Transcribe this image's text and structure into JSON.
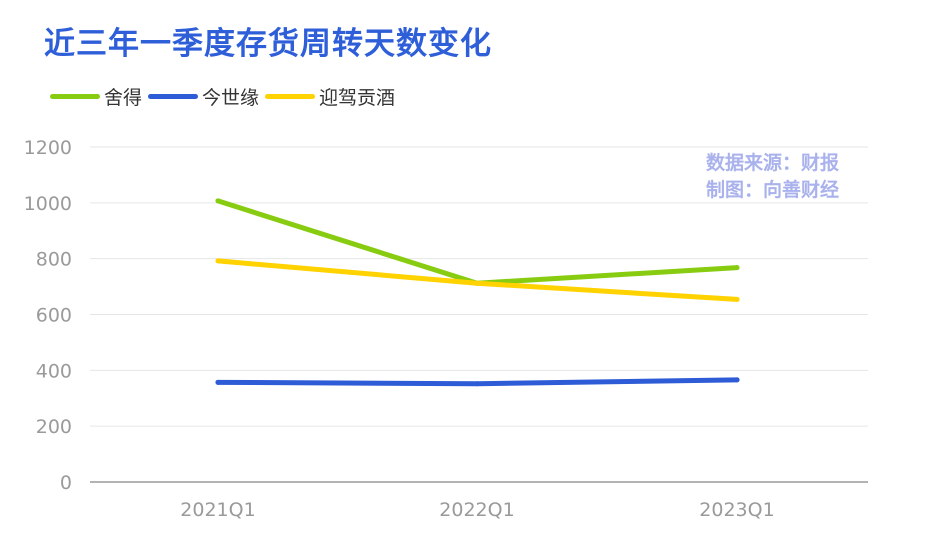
{
  "header": {
    "title": "近三年一季度存货周转天数变化"
  },
  "source_note": {
    "line1": "数据来源：财报",
    "line2": "制图：向善财经"
  },
  "colors": {
    "title": "#2e5fd9",
    "grid": "#e6e6e6",
    "axis": "#9a9a9a",
    "tick_text": "#9a9a9a",
    "source_note": "#a9b2ec"
  },
  "chart_data": {
    "type": "line",
    "title": "近三年一季度存货周转天数变化",
    "xlabel": "",
    "ylabel": "",
    "categories": [
      "2021Q1",
      "2022Q1",
      "2023Q1"
    ],
    "yticks": [
      "0",
      "200",
      "400",
      "600",
      "800",
      "1000",
      "1200"
    ],
    "ylim": [
      0,
      1200
    ],
    "grid": true,
    "legend_position": "top-left",
    "series": [
      {
        "name": "舍得",
        "color": "#88cc11",
        "values": [
          1007,
          712,
          768
        ]
      },
      {
        "name": "今世缘",
        "color": "#2e5bd6",
        "values": [
          357,
          352,
          366
        ]
      },
      {
        "name": "迎驾贡酒",
        "color": "#ffd200",
        "values": [
          792,
          712,
          654
        ]
      }
    ]
  }
}
